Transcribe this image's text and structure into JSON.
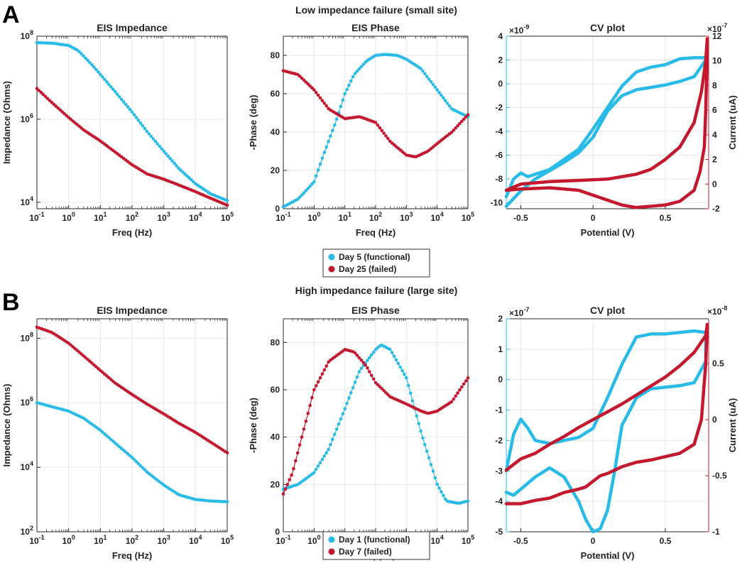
{
  "figure": {
    "colors": {
      "functional": "#29BBE8",
      "failed": "#C4182E",
      "text": "#222222"
    },
    "panelA": {
      "label": "A",
      "title": "Low impedance failure (small site)",
      "legend": [
        "Day 5 (functional)",
        "Day 25 (failed)"
      ]
    },
    "panelB": {
      "label": "B",
      "title": "High impedance failure (large site)",
      "legend": [
        "Day 1 (functional)",
        "Day 7 (failed)"
      ]
    }
  },
  "chart_data": [
    {
      "id": "A-imp",
      "type": "line",
      "title": "EIS Impedance",
      "xlabel": "Freq (Hz)",
      "ylabel": "Impedance (Ohms)",
      "xscale": "log",
      "yscale": "log",
      "xlim": [
        0.1,
        100000
      ],
      "ylim": [
        7000,
        100000000
      ],
      "xticks": [
        0.1,
        1,
        10,
        100,
        1000,
        10000,
        100000
      ],
      "xtick_labels": [
        "10^-1",
        "10^0",
        "10^1",
        "10^2",
        "10^3",
        "10^4",
        "10^5"
      ],
      "yticks": [
        10000,
        1000000,
        100000000
      ],
      "ytick_labels": [
        "10^4",
        "10^6",
        "10^8"
      ],
      "series": [
        {
          "name": "Day 5 (functional)",
          "color": "functional",
          "x": [
            0.1,
            0.3,
            1,
            2,
            5,
            10,
            30,
            100,
            300,
            1000,
            3000,
            10000,
            30000,
            100000
          ],
          "y": [
            70000000,
            68000000,
            60000000,
            45000000,
            22000000,
            12000000,
            4500000,
            1500000,
            500000,
            170000,
            65000,
            28000,
            16000,
            11000
          ]
        },
        {
          "name": "Day 25 (failed)",
          "color": "failed",
          "x": [
            0.1,
            0.3,
            1,
            3,
            10,
            30,
            100,
            300,
            1000,
            3000,
            10000,
            30000,
            100000
          ],
          "y": [
            5500000,
            2500000,
            1100000,
            550000,
            300000,
            160000,
            80000,
            48000,
            36000,
            26000,
            18000,
            12500,
            8500
          ]
        }
      ]
    },
    {
      "id": "A-phase",
      "type": "line",
      "title": "EIS Phase",
      "xlabel": "Freq (Hz)",
      "ylabel": "-Phase (deg)",
      "xscale": "log",
      "yscale": "linear",
      "xlim": [
        0.1,
        100000
      ],
      "ylim": [
        0,
        90
      ],
      "xticks": [
        0.1,
        1,
        10,
        100,
        1000,
        10000,
        100000
      ],
      "xtick_labels": [
        "10^-1",
        "10^0",
        "10^1",
        "10^2",
        "10^3",
        "10^4",
        "10^5"
      ],
      "yticks": [
        0,
        20,
        40,
        60,
        80
      ],
      "ytick_labels": [
        "0",
        "20",
        "40",
        "60",
        "80"
      ],
      "series": [
        {
          "name": "Day 5 (functional)",
          "color": "functional",
          "x": [
            0.1,
            0.3,
            1,
            2,
            5,
            10,
            20,
            50,
            100,
            200,
            500,
            1000,
            3000,
            10000,
            30000,
            100000
          ],
          "y": [
            1,
            5,
            14,
            28,
            45,
            60,
            70,
            77,
            80,
            80.5,
            80,
            78,
            73,
            62,
            52,
            48
          ]
        },
        {
          "name": "Day 25 (failed)",
          "color": "failed",
          "x": [
            0.1,
            0.3,
            1,
            3,
            10,
            30,
            100,
            300,
            1000,
            2000,
            5000,
            10000,
            30000,
            100000
          ],
          "y": [
            72,
            70,
            62,
            52,
            47,
            48,
            45,
            35,
            28,
            27,
            30,
            34,
            40,
            49
          ]
        }
      ]
    },
    {
      "id": "A-cv",
      "type": "line",
      "title": "CV plot",
      "xlabel": "Potential (V)",
      "ylabel": "",
      "ylabel_right": "Current (uA)",
      "xlim": [
        -0.6,
        0.8
      ],
      "ylim": [
        -10.5,
        4
      ],
      "ylim_right": [
        -2,
        12
      ],
      "xticks": [
        -0.5,
        0,
        0.5
      ],
      "xtick_labels": [
        "-0.5",
        "0",
        "0.5"
      ],
      "yticks": [
        -10,
        -8,
        -6,
        -4,
        -2,
        0,
        2,
        4
      ],
      "ytick_labels": [
        "-10",
        "-8",
        "-6",
        "-4",
        "-2",
        "0",
        "2",
        "4"
      ],
      "yticks_right": [
        -2,
        0,
        2,
        4,
        6,
        8,
        10,
        12
      ],
      "ytick_labels_right": [
        "-2",
        "0",
        "2",
        "4",
        "6",
        "8",
        "10",
        "12"
      ],
      "left_multiplier": "×10^-9",
      "right_multiplier": "×10^-7",
      "series": [
        {
          "name": "Day 5 (functional)",
          "color": "functional",
          "axis": "left",
          "x": [
            -0.6,
            -0.55,
            -0.5,
            -0.45,
            -0.3,
            -0.1,
            0,
            0.1,
            0.2,
            0.3,
            0.4,
            0.5,
            0.6,
            0.7,
            0.78,
            0.78,
            0.7,
            0.6,
            0.5,
            0.4,
            0.3,
            0.2,
            0.1,
            0,
            -0.1,
            -0.2,
            -0.3,
            -0.4,
            -0.5,
            -0.6
          ],
          "y": [
            -9.5,
            -8,
            -7.5,
            -7.8,
            -7.2,
            -5.5,
            -3.8,
            -2,
            -0.2,
            1,
            1.4,
            1.6,
            2.1,
            2.2,
            2.2,
            2.0,
            0.6,
            0.2,
            -0.1,
            -0.3,
            -0.5,
            -1,
            -2.3,
            -4.5,
            -5.8,
            -6.6,
            -7.3,
            -8,
            -9,
            -10.3
          ]
        },
        {
          "name": "Day 25 (failed)",
          "color": "failed",
          "axis": "right",
          "x": [
            -0.6,
            -0.5,
            -0.3,
            -0.1,
            0.1,
            0.3,
            0.4,
            0.5,
            0.6,
            0.7,
            0.75,
            0.78,
            0.79,
            0.79,
            0.78,
            0.77,
            0.74,
            0.7,
            0.6,
            0.5,
            0.4,
            0.3,
            0.2,
            0.1,
            0,
            -0.1,
            -0.3,
            -0.5,
            -0.6
          ],
          "y": [
            -0.5,
            0,
            0.2,
            0.3,
            0.4,
            0.8,
            1.2,
            2,
            3,
            5,
            7.5,
            10,
            11.8,
            11,
            6,
            3,
            1,
            -0.5,
            -1.4,
            -1.7,
            -1.8,
            -1.9,
            -1.7,
            -1.3,
            -0.9,
            -0.5,
            -0.3,
            -0.4,
            -0.5
          ]
        }
      ]
    },
    {
      "id": "B-imp",
      "type": "line",
      "title": "EIS Impedance",
      "xlabel": "Freq (Hz)",
      "ylabel": "Impedance (Ohms)",
      "xscale": "log",
      "yscale": "log",
      "xlim": [
        0.1,
        100000
      ],
      "ylim": [
        100,
        400000000
      ],
      "xticks": [
        0.1,
        1,
        10,
        100,
        1000,
        10000,
        100000
      ],
      "xtick_labels": [
        "10^-1",
        "10^0",
        "10^1",
        "10^2",
        "10^3",
        "10^4",
        "10^5"
      ],
      "yticks": [
        100,
        10000,
        1000000,
        100000000
      ],
      "ytick_labels": [
        "10^2",
        "10^4",
        "10^6",
        "10^8"
      ],
      "series": [
        {
          "name": "Day 1 (functional)",
          "color": "functional",
          "x": [
            0.1,
            0.3,
            1,
            3,
            10,
            30,
            100,
            300,
            1000,
            3000,
            10000,
            30000,
            100000
          ],
          "y": [
            1000000,
            750000,
            550000,
            330000,
            140000,
            55000,
            20000,
            7000,
            2800,
            1400,
            1000,
            900,
            850
          ]
        },
        {
          "name": "Day 7 (failed)",
          "color": "failed",
          "x": [
            0.1,
            0.3,
            1,
            3,
            10,
            30,
            100,
            300,
            1000,
            3000,
            10000,
            30000,
            100000
          ],
          "y": [
            220000000,
            150000000,
            70000000,
            28000000,
            10000000,
            4000000,
            1800000,
            900000,
            450000,
            230000,
            120000,
            60000,
            28000
          ]
        }
      ]
    },
    {
      "id": "B-phase",
      "type": "line",
      "title": "EIS Phase",
      "xlabel": "Freq (Hz)",
      "ylabel": "-Phase (deg)",
      "xscale": "log",
      "yscale": "linear",
      "xlim": [
        0.1,
        100000
      ],
      "ylim": [
        0,
        90
      ],
      "xticks": [
        0.1,
        1,
        10,
        100,
        1000,
        10000,
        100000
      ],
      "xtick_labels": [
        "10^-1",
        "10^0",
        "10^1",
        "10^2",
        "10^3",
        "10^4",
        "10^5"
      ],
      "yticks": [
        0,
        20,
        40,
        60,
        80
      ],
      "ytick_labels": [
        "0",
        "20",
        "40",
        "60",
        "80"
      ],
      "series": [
        {
          "name": "Day 1 (functional)",
          "color": "functional",
          "x": [
            0.1,
            0.3,
            1,
            3,
            10,
            30,
            100,
            150,
            300,
            1000,
            3000,
            10000,
            20000,
            50000,
            100000
          ],
          "y": [
            18,
            20,
            25,
            35,
            52,
            68,
            77,
            79,
            77,
            65,
            42,
            20,
            13,
            12,
            13
          ]
        },
        {
          "name": "Day 7 (failed)",
          "color": "failed",
          "x": [
            0.1,
            0.2,
            0.5,
            1,
            3,
            10,
            20,
            50,
            100,
            300,
            1000,
            3000,
            5000,
            10000,
            30000,
            100000
          ],
          "y": [
            16,
            25,
            45,
            60,
            72,
            77,
            76,
            70,
            63,
            57,
            54,
            51,
            50,
            51,
            55,
            65
          ]
        }
      ]
    },
    {
      "id": "B-cv",
      "type": "line",
      "title": "CV plot",
      "xlabel": "Potential (V)",
      "ylabel": "",
      "ylabel_right": "Current (uA)",
      "xlim": [
        -0.6,
        0.8
      ],
      "ylim": [
        -5,
        2
      ],
      "ylim_right": [
        -1,
        0.9
      ],
      "xticks": [
        -0.5,
        0,
        0.5
      ],
      "xtick_labels": [
        "-0.5",
        "0",
        "0.5"
      ],
      "yticks": [
        -5,
        -4,
        -3,
        -2,
        -1,
        0,
        1,
        2
      ],
      "ytick_labels": [
        "-5",
        "-4",
        "-3",
        "-2",
        "-1",
        "0",
        "1",
        "2"
      ],
      "yticks_right": [
        -1,
        -0.5,
        0,
        0.5
      ],
      "ytick_labels_right": [
        "-1",
        "-0.5",
        "0",
        "0.5"
      ],
      "left_multiplier": "×10^-7",
      "right_multiplier": "×10^-8",
      "series": [
        {
          "name": "Day 1 (functional)",
          "color": "functional",
          "axis": "left",
          "x": [
            -0.6,
            -0.55,
            -0.5,
            -0.45,
            -0.4,
            -0.3,
            -0.2,
            -0.1,
            0,
            0.1,
            0.2,
            0.3,
            0.4,
            0.5,
            0.6,
            0.7,
            0.78,
            0.78,
            0.7,
            0.6,
            0.5,
            0.4,
            0.3,
            0.2,
            0.15,
            0.1,
            0.05,
            0,
            -0.05,
            -0.1,
            -0.2,
            -0.3,
            -0.4,
            -0.5,
            -0.55,
            -0.6
          ],
          "y": [
            -3,
            -1.8,
            -1.3,
            -1.6,
            -2,
            -2.1,
            -2,
            -1.9,
            -1.6,
            -0.6,
            0.5,
            1.4,
            1.5,
            1.5,
            1.55,
            1.6,
            1.55,
            0.6,
            -0.1,
            -0.2,
            -0.25,
            -0.3,
            -0.6,
            -1.5,
            -3,
            -4.3,
            -4.9,
            -5,
            -4.6,
            -4,
            -3.2,
            -2.9,
            -3.2,
            -3.6,
            -3.8,
            -3.7
          ]
        },
        {
          "name": "Day 7 (failed)",
          "color": "failed",
          "axis": "right",
          "x": [
            -0.6,
            -0.5,
            -0.4,
            -0.3,
            -0.2,
            -0.1,
            0,
            0.1,
            0.2,
            0.3,
            0.4,
            0.5,
            0.6,
            0.7,
            0.78,
            0.79,
            0.78,
            0.75,
            0.7,
            0.6,
            0.5,
            0.4,
            0.3,
            0.2,
            0.1,
            0.05,
            0,
            -0.05,
            -0.1,
            -0.2,
            -0.3,
            -0.4,
            -0.5,
            -0.6
          ],
          "y": [
            -0.45,
            -0.35,
            -0.3,
            -0.22,
            -0.15,
            -0.07,
            0,
            0.07,
            0.14,
            0.22,
            0.3,
            0.38,
            0.48,
            0.6,
            0.75,
            0.85,
            0.5,
            0.0,
            -0.22,
            -0.3,
            -0.33,
            -0.36,
            -0.38,
            -0.42,
            -0.48,
            -0.5,
            -0.55,
            -0.6,
            -0.62,
            -0.65,
            -0.7,
            -0.72,
            -0.75,
            -0.75
          ]
        }
      ]
    }
  ]
}
